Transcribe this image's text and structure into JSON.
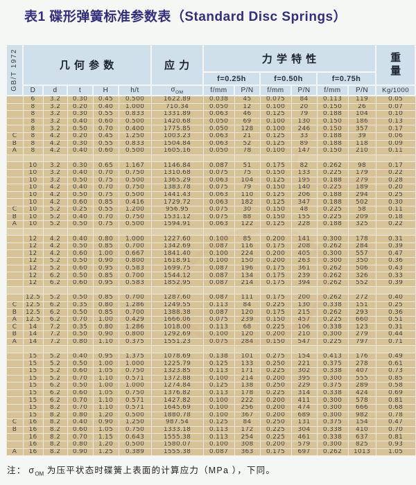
{
  "page": {
    "title": "表1  碟形弹簧标准参数表（Standard Disc Springs）"
  },
  "colors": {
    "page_bg": "#f5f7f5",
    "title": "#322e7e",
    "header_bg": "#cfe0ea",
    "header_grid": "#f3f6f6",
    "row_bg": "#d6c297",
    "sep_row_bg": "#dccfa9",
    "grid": "#efe8d6",
    "body_text": "#45413a",
    "header_text": "#1a2130"
  },
  "table": {
    "side_label": "GB/T 1972",
    "header": {
      "geometry": "几 何 参 数",
      "stress": "应 力",
      "mechanics": "力 学 特 性",
      "weight": "重量"
    },
    "sub_headers": [
      "f=0.25h",
      "f=0.50h",
      "f=0.75h"
    ],
    "columns": {
      "geo": [
        "D",
        "d",
        "t",
        "H",
        "h/t"
      ],
      "sigma_base": "σ",
      "sigma_sub": "OM",
      "mech": [
        "f/mm",
        "P/N",
        "f/mm",
        "P/N",
        "f/mm",
        "P/N"
      ],
      "weight_unit": "Kg/1000"
    },
    "rows": [
      [
        "",
        "6",
        "3.2",
        "0.30",
        "0.45",
        "0.500",
        "1622.89",
        "0.038",
        "45",
        "0.075",
        "84",
        "0.113",
        "119",
        "0.05"
      ],
      [
        "",
        "8",
        "3.2",
        "0.20",
        "0.40",
        "1.000",
        "710.34",
        "0.050",
        "12",
        "0.100",
        "20",
        "0.150",
        "26",
        "0.07"
      ],
      [
        "",
        "8",
        "3.2",
        "0.30",
        "0.55",
        "0.833",
        "1331.89",
        "0.063",
        "46",
        "0.125",
        "79",
        "0.188",
        "104",
        "0.10"
      ],
      [
        "",
        "8",
        "3.2",
        "0.40",
        "0.60",
        "0.500",
        "1420.68",
        "0.050",
        "69",
        "0.100",
        "130",
        "0.150",
        "186",
        "0.13"
      ],
      [
        "",
        "8",
        "3.2",
        "0.50",
        "0.70",
        "0.400",
        "1775.85",
        "0.050",
        "128",
        "0.100",
        "246",
        "0.150",
        "357",
        "0.17"
      ],
      [
        "C",
        "8",
        "4.2",
        "0.20",
        "0.45",
        "1.250",
        "1003.23",
        "0.063",
        "21",
        "0.125",
        "33",
        "0.188",
        "39",
        "0.06"
      ],
      [
        "B",
        "8",
        "4.2",
        "0.30",
        "0.55",
        "0.833",
        "1504.84",
        "0.063",
        "52",
        "0.125",
        "89",
        "0.188",
        "118",
        "0.09"
      ],
      [
        "A",
        "8",
        "4.2",
        "0.40",
        "0.60",
        "0.500",
        "1605.16",
        "0.050",
        "78",
        "0.100",
        "147",
        "0.150",
        "210",
        "0.11"
      ],
      "sep",
      [
        "",
        "10",
        "3.2",
        "0.30",
        "0.65",
        "1.167",
        "1146.84",
        "0.087",
        "51",
        "0.175",
        "82",
        "0.262",
        "98",
        "0.17"
      ],
      [
        "",
        "10",
        "3.2",
        "0.40",
        "0.70",
        "0.750",
        "1310.68",
        "0.075",
        "75",
        "0.150",
        "133",
        "0.225",
        "179",
        "0.22"
      ],
      [
        "",
        "10",
        "3.2",
        "0.50",
        "0.75",
        "0.500",
        "1365.29",
        "0.063",
        "104",
        "0.125",
        "195",
        "0.188",
        "279",
        "0.28"
      ],
      [
        "",
        "10",
        "4.2",
        "0.40",
        "0.70",
        "0.750",
        "1383.78",
        "0.075",
        "79",
        "0.150",
        "140",
        "0.225",
        "189",
        "0.20"
      ],
      [
        "",
        "10",
        "4.2",
        "0.50",
        "0.75",
        "0.500",
        "1441.43",
        "0.063",
        "110",
        "0.125",
        "206",
        "0.188",
        "294",
        "0.25"
      ],
      [
        "",
        "10",
        "4.2",
        "0.60",
        "0.85",
        "0.416",
        "1729.72",
        "0.063",
        "182",
        "0.125",
        "347",
        "0.188",
        "502",
        "0.30"
      ],
      [
        "C",
        "10",
        "5.2",
        "0.25",
        "0.55",
        "1.200",
        "956.95",
        "0.075",
        "30",
        "0.150",
        "48",
        "0.225",
        "58",
        "0.11"
      ],
      [
        "B",
        "10",
        "5.2",
        "0.40",
        "0.70",
        "0.750",
        "1531.12",
        "0.075",
        "88",
        "0.150",
        "155",
        "0.225",
        "209",
        "0.18"
      ],
      [
        "A",
        "10",
        "5.2",
        "0.50",
        "0.75",
        "0.500",
        "1594.91",
        "0.063",
        "122",
        "0.125",
        "228",
        "0.188",
        "325",
        "0.22"
      ],
      "sep",
      [
        "",
        "12",
        "4.2",
        "0.40",
        "0.80",
        "1.000",
        "1227.60",
        "0.100",
        "85",
        "0.200",
        "141",
        "0.300",
        "178",
        "0.31"
      ],
      [
        "",
        "12",
        "4.2",
        "0.50",
        "0.85",
        "0.700",
        "1342.69",
        "0.087",
        "116",
        "0.175",
        "208",
        "0.262",
        "284",
        "0.39"
      ],
      [
        "",
        "12",
        "4.2",
        "0.60",
        "1.00",
        "0.667",
        "1841.40",
        "0.100",
        "224",
        "0.200",
        "405",
        "0.300",
        "557",
        "0.47"
      ],
      [
        "",
        "12",
        "5.2",
        "0.50",
        "0.90",
        "0.800",
        "1618.91",
        "0.100",
        "150",
        "0.200",
        "263",
        "0.300",
        "350",
        "0.36"
      ],
      [
        "",
        "12",
        "5.2",
        "0.60",
        "0.95",
        "0.583",
        "1699.75",
        "0.087",
        "196",
        "0.175",
        "361",
        "0.262",
        "506",
        "0.43"
      ],
      [
        "",
        "12",
        "6.2",
        "0.50",
        "0.85",
        "0.700",
        "1544.12",
        "0.087",
        "134",
        "0.175",
        "239",
        "0.262",
        "326",
        "0.33"
      ],
      [
        "",
        "12",
        "6.2",
        "0.60",
        "0.95",
        "0.583",
        "1852.95",
        "0.087",
        "214",
        "0.175",
        "394",
        "0.262",
        "552",
        "0.39"
      ],
      "sep",
      [
        "",
        "12.5",
        "5.2",
        "0.50",
        "0.85",
        "0.700",
        "1287.60",
        "0.087",
        "111",
        "0.175",
        "200",
        "0.262",
        "272",
        "0.40"
      ],
      [
        "C",
        "12.5",
        "6.2",
        "0.35",
        "0.80",
        "1.286",
        "1249.55",
        "0.113",
        "84",
        "0.225",
        "130",
        "0.338",
        "151",
        "0.25"
      ],
      [
        "B",
        "12.5",
        "6.2",
        "0.50",
        "0.85",
        "0.700",
        "1388.38",
        "0.087",
        "120",
        "0.175",
        "215",
        "0.262",
        "293",
        "0.36"
      ],
      [
        "A",
        "12.5",
        "6.2",
        "0.70",
        "1.00",
        "0.429",
        "1666.06",
        "0.075",
        "239",
        "0.150",
        "457",
        "0.225",
        "660",
        "0.51"
      ],
      [
        "C",
        "14",
        "7.2",
        "0.35",
        "0.80",
        "1.286",
        "1018.00",
        "0.113",
        "68",
        "0.225",
        "106",
        "0.338",
        "123",
        "0.31"
      ],
      [
        "B",
        "14",
        "7.2",
        "0.50",
        "0.90",
        "0.800",
        "1292.69",
        "0.100",
        "120",
        "0.200",
        "210",
        "0.300",
        "279",
        "0.44"
      ],
      [
        "A",
        "14",
        "7.2",
        "0.80",
        "1.10",
        "0.375",
        "1551.23",
        "0.075",
        "284",
        "0.150",
        "547",
        "0.225",
        "797",
        "0.71"
      ],
      "sep",
      [
        "",
        "15",
        "5.2",
        "0.40",
        "0.95",
        "1.375",
        "1078.69",
        "0.138",
        "101",
        "0.275",
        "154",
        "0.413",
        "176",
        "0.49"
      ],
      [
        "",
        "15",
        "5.2",
        "0.50",
        "1.00",
        "1.000",
        "1225.79",
        "0.125",
        "133",
        "0.250",
        "221",
        "0.375",
        "278",
        "0.61"
      ],
      [
        "",
        "15",
        "5.2",
        "0.60",
        "1.05",
        "0.750",
        "1323.85",
        "0.113",
        "171",
        "0.225",
        "302",
        "0.338",
        "407",
        "0.73"
      ],
      [
        "",
        "15",
        "5.2",
        "0.70",
        "1.10",
        "0.571",
        "1372.88",
        "0.100",
        "214",
        "0.200",
        "395",
        "0.300",
        "555",
        "0.85"
      ],
      [
        "",
        "15",
        "6.2",
        "0.50",
        "1.00",
        "1.000",
        "1274.84",
        "0.125",
        "138",
        "0.250",
        "229",
        "0.375",
        "289",
        "0.58"
      ],
      [
        "",
        "15",
        "6.2",
        "0.60",
        "1.05",
        "0.750",
        "1376.82",
        "0.113",
        "178",
        "0.225",
        "314",
        "0.338",
        "424",
        "0.69"
      ],
      [
        "",
        "15",
        "6.2",
        "0.70",
        "1.10",
        "0.571",
        "1427.82",
        "0.100",
        "222",
        "0.200",
        "411",
        "0.300",
        "578",
        "0.81"
      ],
      [
        "",
        "15",
        "8.2",
        "0.70",
        "1.10",
        "0.571",
        "1645.69",
        "0.100",
        "256",
        "0.200",
        "474",
        "0.300",
        "666",
        "0.68"
      ],
      [
        "",
        "15",
        "8.2",
        "0.80",
        "1.20",
        "0.500",
        "1880.78",
        "0.100",
        "367",
        "0.200",
        "689",
        "0.300",
        "982",
        "0.78"
      ],
      [
        "C",
        "16",
        "8.2",
        "0.40",
        "0.90",
        "1.250",
        "987.54",
        "0.125",
        "84",
        "0.250",
        "131",
        "0.375",
        "154",
        "0.47"
      ],
      [
        "B",
        "16",
        "8.2",
        "0.60",
        "1.05",
        "0.750",
        "1333.18",
        "0.113",
        "172",
        "0.225",
        "304",
        "0.338",
        "410",
        "0.70"
      ],
      [
        "",
        "16",
        "8.2",
        "0.70",
        "1.15",
        "0.643",
        "1555.38",
        "0.113",
        "254",
        "0.225",
        "461",
        "0.338",
        "637",
        "0.81"
      ],
      [
        "",
        "16",
        "8.2",
        "0.80",
        "1.20",
        "0.500",
        "1580.07",
        "0.100",
        "308",
        "0.200",
        "579",
        "0.300",
        "825",
        "0.93"
      ],
      [
        "A",
        "16",
        "8.2",
        "0.90",
        "1.25",
        "0.389",
        "1555.38",
        "0.087",
        "363",
        "0.175",
        "697",
        "0.262",
        "1013",
        "1.05"
      ]
    ]
  },
  "footnote": {
    "prefix": "注：",
    "sigma": "σ",
    "sigma_sub": "OM",
    "text": "为压平状态时碟簧上表面的计算应力（MPa ），下同。"
  }
}
